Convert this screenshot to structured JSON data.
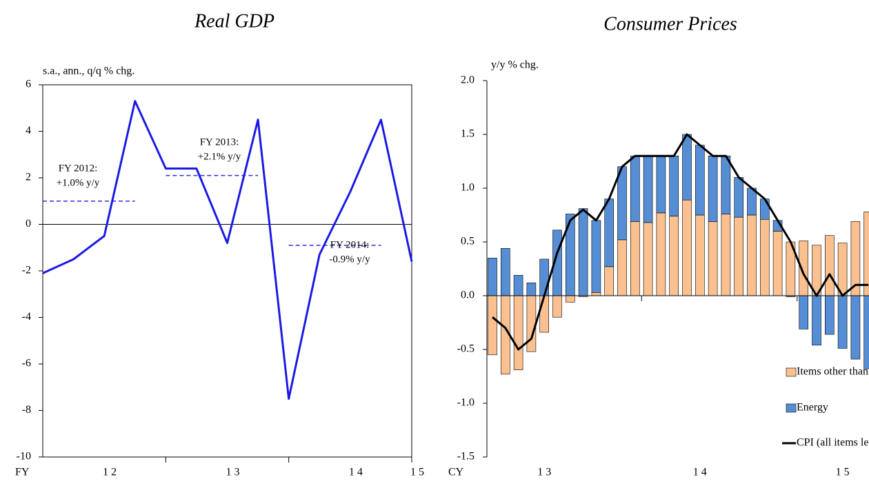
{
  "chart_data": [
    {
      "type": "line",
      "title": "Real GDP",
      "ylabel": "s.a., ann., q/q % chg.",
      "xlabel": "FY",
      "categories": [
        null,
        null,
        "1 2",
        null,
        null,
        null,
        "1 3",
        null,
        null,
        null,
        "1 4",
        null,
        "1 5"
      ],
      "series": [
        {
          "color": "#1a1ae6",
          "values": [
            -2.1,
            -1.5,
            -0.5,
            5.3,
            2.4,
            2.4,
            -0.8,
            4.5,
            -7.5,
            -1.3,
            1.4,
            4.5,
            -1.6
          ]
        }
      ],
      "annotations": [
        {
          "text": [
            "FY 2012:",
            "+1.0% y/y"
          ],
          "value": 1.0,
          "color": "#2a2ae0"
        },
        {
          "text": [
            "FY 2013:",
            "+2.1% y/y"
          ],
          "value": 2.1,
          "color": "#2a2ae0"
        },
        {
          "text": [
            "FY 2014:",
            "-0.9% y/y"
          ],
          "value": -0.9,
          "color": "#2a2ae0"
        }
      ],
      "ylim": [
        -10,
        6
      ],
      "yticks": [
        -10,
        -8,
        -6,
        -4,
        -2,
        0,
        2,
        4,
        6
      ]
    },
    {
      "type": "bar",
      "stacked": true,
      "title": "Consumer Prices",
      "ylabel": "y/y % chg.",
      "xlabel": "CY",
      "legend": "lower right",
      "categories": [
        null,
        null,
        null,
        null,
        "1 3",
        null,
        null,
        null,
        null,
        null,
        null,
        null,
        null,
        null,
        null,
        null,
        "1 4",
        null,
        null,
        null,
        null,
        null,
        null,
        null,
        null,
        null,
        null,
        "1 5",
        null,
        null
      ],
      "series": [
        {
          "name": "Items other than energy",
          "color": "#fac090",
          "values": [
            -0.55,
            -0.73,
            -0.69,
            -0.52,
            -0.34,
            -0.2,
            -0.06,
            -0.01,
            0.03,
            0.27,
            0.52,
            0.69,
            0.68,
            0.77,
            0.74,
            0.89,
            0.75,
            0.69,
            0.76,
            0.73,
            0.75,
            0.71,
            0.6,
            0.5,
            0.51,
            0.47,
            0.56,
            0.49,
            0.69,
            0.78
          ]
        },
        {
          "name": "Energy",
          "color": "#558ed5",
          "values": [
            0.35,
            0.44,
            0.19,
            0.12,
            0.34,
            0.61,
            0.76,
            0.81,
            0.67,
            0.63,
            0.68,
            0.61,
            0.62,
            0.53,
            0.56,
            0.61,
            0.65,
            0.61,
            0.54,
            0.37,
            0.25,
            0.19,
            0.1,
            -0.01,
            -0.31,
            -0.46,
            -0.36,
            -0.49,
            -0.59,
            -0.68
          ]
        },
        {
          "name": "CPI (all items less fresh food)",
          "type": "line",
          "color": "#000000",
          "values": [
            -0.2,
            -0.3,
            -0.5,
            -0.4,
            0.0,
            0.4,
            0.7,
            0.8,
            0.7,
            0.9,
            1.2,
            1.3,
            1.3,
            1.3,
            1.3,
            1.5,
            1.4,
            1.3,
            1.3,
            1.1,
            1.0,
            0.9,
            0.7,
            0.5,
            0.2,
            0.0,
            0.2,
            0.0,
            0.1,
            0.1
          ]
        }
      ],
      "ylim": [
        -1.5,
        2.0
      ],
      "yticks": [
        {
          "value": -1.5,
          "label": "-1.5"
        },
        {
          "value": -1,
          "label": "-1.0"
        },
        {
          "value": -0.5,
          "label": "-0.5"
        },
        {
          "value": 0,
          "label": "0.0"
        },
        {
          "value": 0.5,
          "label": "0.5"
        },
        {
          "value": 1,
          "label": "1.0"
        },
        {
          "value": 1.5,
          "label": "1.5"
        },
        {
          "value": 2,
          "label": "2.0"
        }
      ]
    }
  ]
}
